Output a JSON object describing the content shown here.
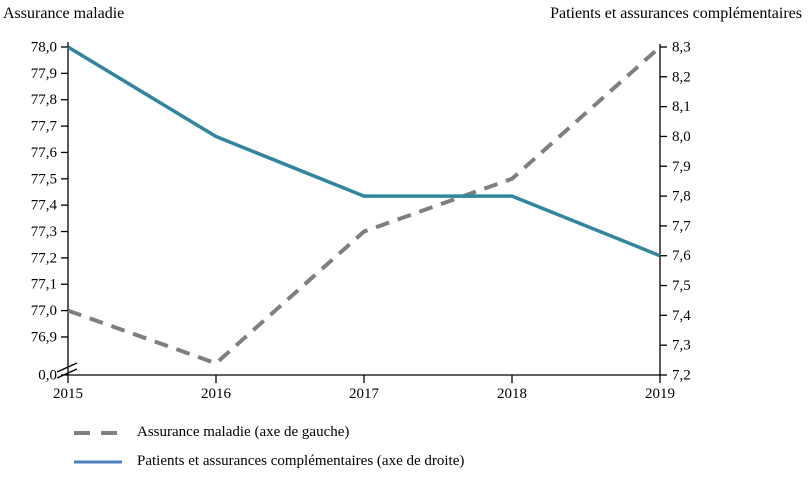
{
  "chart_data": {
    "type": "line",
    "x": [
      "2015",
      "2016",
      "2017",
      "2018",
      "2019"
    ],
    "series": [
      {
        "name": "Assurance maladie (axe de gauche)",
        "axis": "left",
        "line_style": "dashed",
        "color": "#7f7f7f",
        "values": [
          77.0,
          76.8,
          77.3,
          77.5,
          78.0
        ]
      },
      {
        "name": "Patients et assurances complémentaires (axe de droite)",
        "axis": "right",
        "line_style": "solid",
        "color": "#31859c",
        "values": [
          8.3,
          8.0,
          7.8,
          7.8,
          7.6
        ]
      }
    ],
    "left_axis": {
      "title": "Assurance maladie",
      "tick_labels": [
        "78,0",
        "77,9",
        "77,8",
        "77,7",
        "77,6",
        "77,5",
        "77,4",
        "77,3",
        "77,2",
        "77,1",
        "77,0",
        "76,9"
      ],
      "bottom_label": "0,0",
      "max": 78.0,
      "min_labeled": 76.9,
      "step": 0.1,
      "axis_break": true
    },
    "right_axis": {
      "title": "Patients et assurances complémentaires",
      "tick_labels": [
        "8,3",
        "8,2",
        "8,1",
        "8,0",
        "7,9",
        "7,8",
        "7,7",
        "7,6",
        "7,5",
        "7,4",
        "7,3",
        "7,2"
      ],
      "max": 8.3,
      "min": 7.2,
      "step": 0.1
    },
    "grid": false,
    "legend_position": "bottom-left",
    "axis_color": "#000000"
  },
  "legend": {
    "items": [
      {
        "label": "Assurance maladie (axe de gauche)",
        "swatch": "dashed",
        "swatch_color": "#808080"
      },
      {
        "label": "Patients et assurances complémentaires (axe de droite)",
        "swatch": "solid",
        "swatch_color": "#4f81bd"
      }
    ]
  }
}
